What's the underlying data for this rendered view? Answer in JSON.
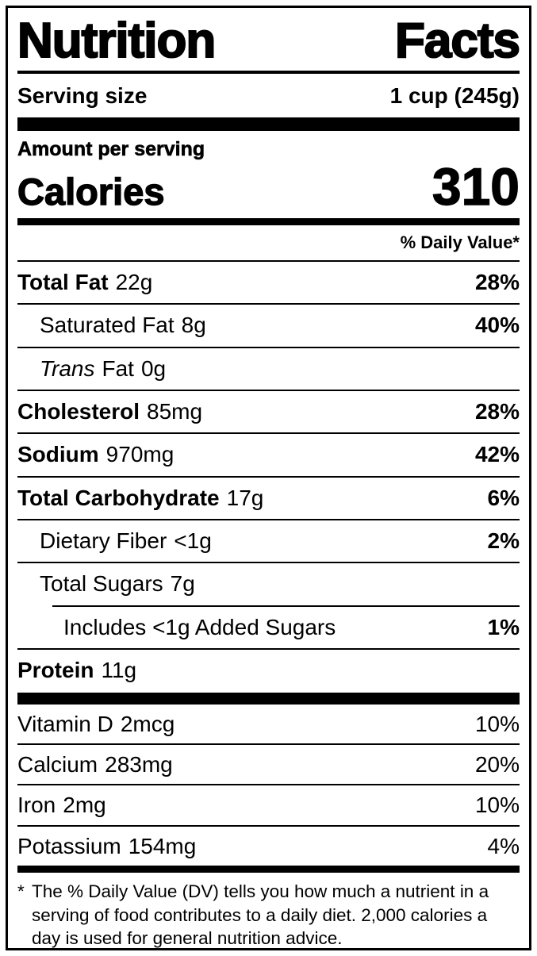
{
  "nutrition_label": {
    "title": {
      "word1": "Nutrition",
      "word2": "Facts"
    },
    "serving_size": {
      "label": "Serving size",
      "value": "1 cup (245g)"
    },
    "amount_heading": "Amount per serving",
    "calories": {
      "label": "Calories",
      "value": "310"
    },
    "daily_value_header": "% Daily Value*",
    "nutrients": {
      "total_fat": {
        "name": "Total Fat",
        "amount": "22g",
        "dv": "28%"
      },
      "saturated_fat": {
        "name": "Saturated Fat",
        "amount": "8g",
        "dv": "40%"
      },
      "trans_fat": {
        "name_italic": "Trans",
        "name_rest": "Fat",
        "amount": "0g"
      },
      "cholesterol": {
        "name": "Cholesterol",
        "amount": "85mg",
        "dv": "28%"
      },
      "sodium": {
        "name": "Sodium",
        "amount": "970mg",
        "dv": "42%"
      },
      "total_carbohydrate": {
        "name": "Total Carbohydrate",
        "amount": "17g",
        "dv": "6%"
      },
      "dietary_fiber": {
        "name": "Dietary Fiber",
        "amount": "<1g",
        "dv": "2%"
      },
      "total_sugars": {
        "name": "Total Sugars",
        "amount": "7g"
      },
      "added_sugars": {
        "name": "Includes <1g Added Sugars",
        "dv": "1%"
      },
      "protein": {
        "name": "Protein",
        "amount": "11g"
      }
    },
    "micronutrients": {
      "vitamin_d": {
        "name": "Vitamin D",
        "amount": "2mcg",
        "dv": "10%"
      },
      "calcium": {
        "name": "Calcium",
        "amount": "283mg",
        "dv": "20%"
      },
      "iron": {
        "name": "Iron",
        "amount": "2mg",
        "dv": "10%"
      },
      "potassium": {
        "name": "Potassium",
        "amount": "154mg",
        "dv": "4%"
      }
    },
    "footnote": {
      "asterisk": "*",
      "text": "The % Daily Value (DV) tells you how much a nutrient in a serving of food contributes to a daily diet. 2,000 calories a day is used for general nutrition advice."
    }
  }
}
